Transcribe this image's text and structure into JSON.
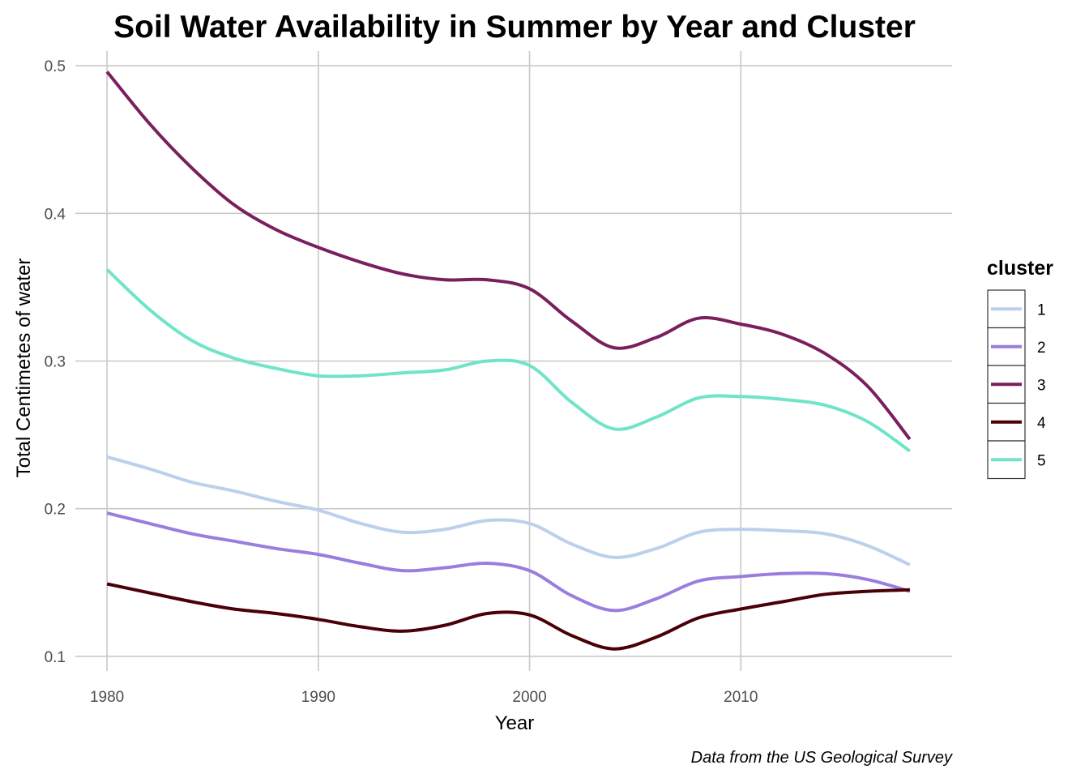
{
  "chart_data": {
    "type": "line",
    "title": "Soil Water Availability in Summer by Year and Cluster",
    "xlabel": "Year",
    "ylabel": "Total Centimetes of water",
    "caption": "Data from the US Geological Survey",
    "xlim": [
      1978.5,
      2020
    ],
    "ylim": [
      0.09,
      0.51
    ],
    "xticks": [
      1980,
      1990,
      2000,
      2010
    ],
    "yticks": [
      0.1,
      0.2,
      0.3,
      0.4,
      0.5
    ],
    "xtick_labels": [
      "1980",
      "1990",
      "2000",
      "2010"
    ],
    "ytick_labels": [
      "0.1",
      "0.2",
      "0.3",
      "0.4",
      "0.5"
    ],
    "grid": true,
    "legend": {
      "title": "cluster",
      "position": "right"
    },
    "series": [
      {
        "name": "1",
        "color": "#bcd0ec",
        "x": [
          1980,
          1982,
          1984,
          1986,
          1988,
          1990,
          1992,
          1994,
          1996,
          1998,
          2000,
          2002,
          2004,
          2006,
          2008,
          2010,
          2012,
          2014,
          2016,
          2018
        ],
        "y": [
          0.235,
          0.227,
          0.218,
          0.212,
          0.205,
          0.199,
          0.19,
          0.184,
          0.186,
          0.192,
          0.19,
          0.176,
          0.167,
          0.173,
          0.184,
          0.186,
          0.185,
          0.183,
          0.175,
          0.162
        ]
      },
      {
        "name": "2",
        "color": "#9a7ede",
        "x": [
          1980,
          1982,
          1984,
          1986,
          1988,
          1990,
          1992,
          1994,
          1996,
          1998,
          2000,
          2002,
          2004,
          2006,
          2008,
          2010,
          2012,
          2014,
          2016,
          2018
        ],
        "y": [
          0.197,
          0.19,
          0.183,
          0.178,
          0.173,
          0.169,
          0.163,
          0.158,
          0.16,
          0.163,
          0.158,
          0.141,
          0.131,
          0.139,
          0.151,
          0.154,
          0.156,
          0.156,
          0.152,
          0.144
        ]
      },
      {
        "name": "3",
        "color": "#7a1f5e",
        "x": [
          1980,
          1982,
          1984,
          1986,
          1988,
          1990,
          1992,
          1994,
          1996,
          1998,
          2000,
          2002,
          2004,
          2006,
          2008,
          2010,
          2012,
          2014,
          2016,
          2018
        ],
        "y": [
          0.496,
          0.461,
          0.431,
          0.406,
          0.389,
          0.377,
          0.367,
          0.359,
          0.355,
          0.355,
          0.349,
          0.327,
          0.309,
          0.316,
          0.329,
          0.325,
          0.318,
          0.305,
          0.283,
          0.247
        ]
      },
      {
        "name": "4",
        "color": "#4a0007",
        "x": [
          1980,
          1982,
          1984,
          1986,
          1988,
          1990,
          1992,
          1994,
          1996,
          1998,
          2000,
          2002,
          2004,
          2006,
          2008,
          2010,
          2012,
          2014,
          2016,
          2018
        ],
        "y": [
          0.149,
          0.143,
          0.137,
          0.132,
          0.129,
          0.125,
          0.12,
          0.117,
          0.121,
          0.129,
          0.128,
          0.114,
          0.105,
          0.113,
          0.126,
          0.132,
          0.137,
          0.142,
          0.144,
          0.145
        ]
      },
      {
        "name": "5",
        "color": "#6fe4c8",
        "x": [
          1980,
          1982,
          1984,
          1986,
          1988,
          1990,
          1992,
          1994,
          1996,
          1998,
          2000,
          2002,
          2004,
          2006,
          2008,
          2010,
          2012,
          2014,
          2016,
          2018
        ],
        "y": [
          0.362,
          0.335,
          0.314,
          0.302,
          0.295,
          0.29,
          0.29,
          0.292,
          0.294,
          0.3,
          0.297,
          0.272,
          0.254,
          0.262,
          0.275,
          0.276,
          0.274,
          0.27,
          0.259,
          0.239
        ]
      }
    ]
  }
}
